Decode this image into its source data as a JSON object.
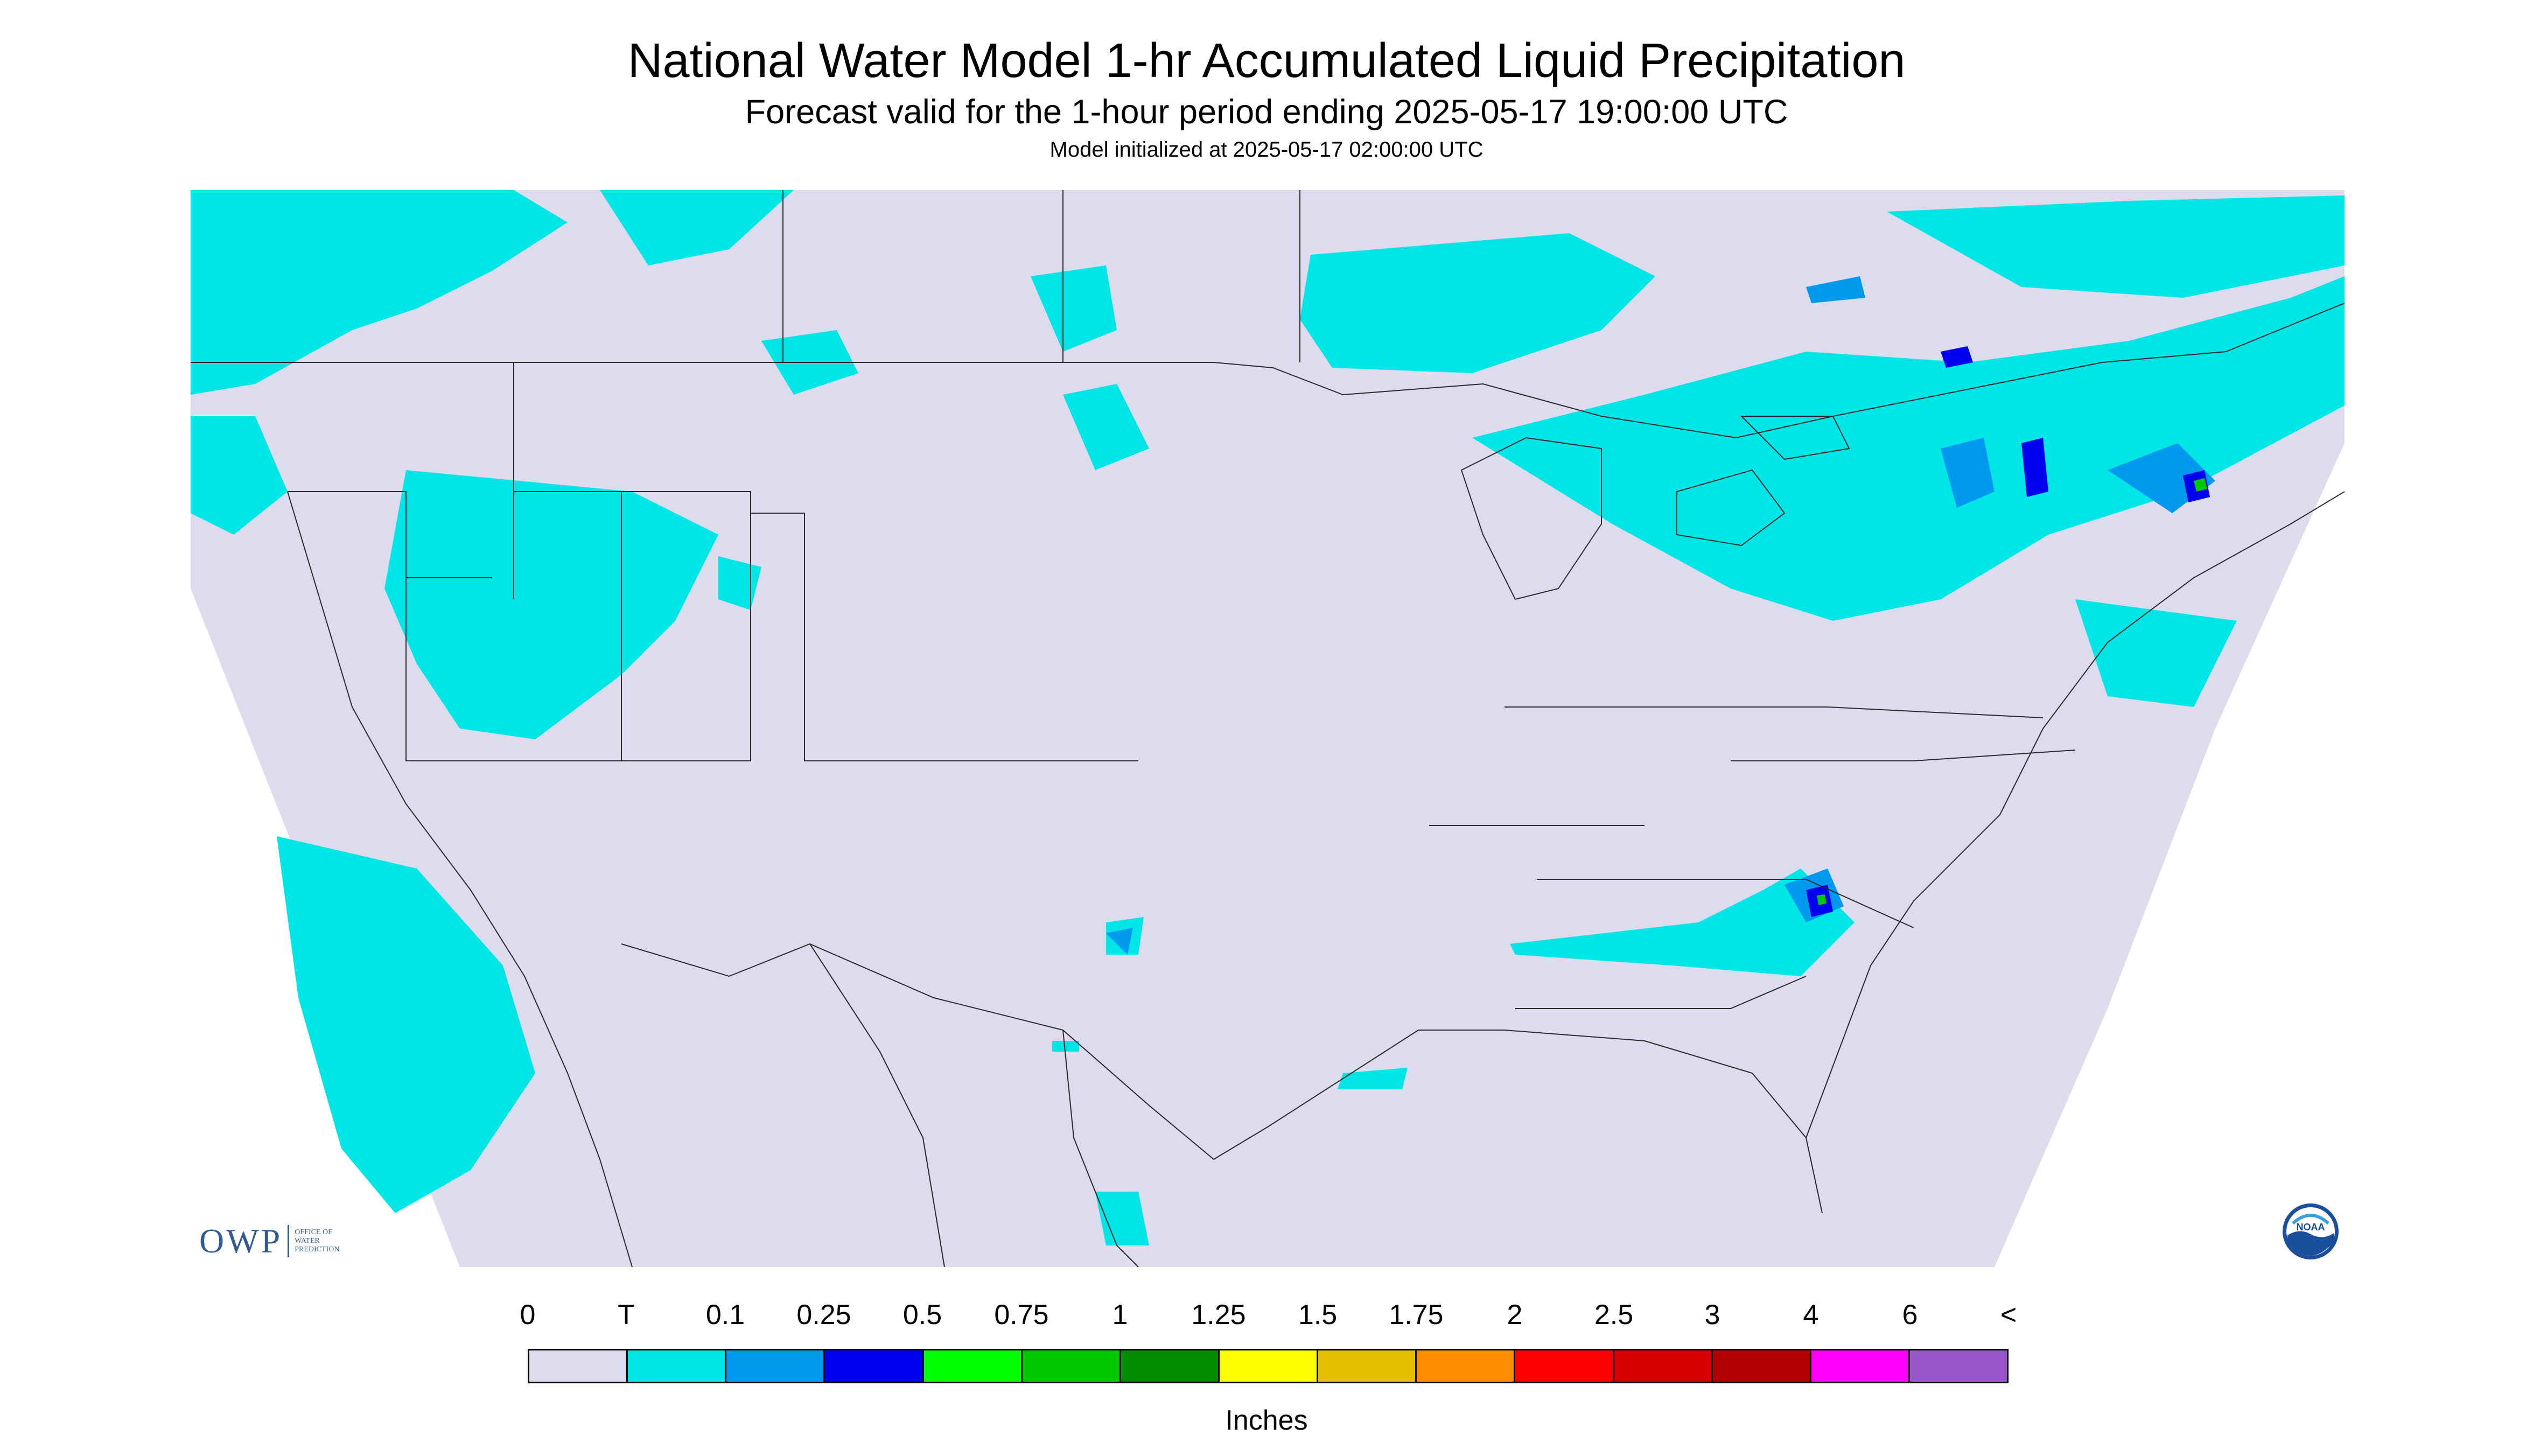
{
  "header": {
    "title": "National Water Model 1-hr Accumulated Liquid Precipitation",
    "subtitle": "Forecast valid for the 1-hour period ending 2025-05-17 19:00:00 UTC",
    "init_line": "Model initialized at 2025-05-17 02:00:00 UTC"
  },
  "legend": {
    "labels": [
      "0",
      "T",
      "0.1",
      "0.25",
      "0.5",
      "0.75",
      "1",
      "1.25",
      "1.5",
      "1.75",
      "2",
      "2.5",
      "3",
      "4",
      "6",
      "<"
    ],
    "colors": [
      "#dcdcee",
      "#00e6e6",
      "#0099f0",
      "#0000f0",
      "#00ff00",
      "#00c800",
      "#008c00",
      "#ffff00",
      "#e6be00",
      "#ff8c00",
      "#ff0000",
      "#d70000",
      "#b40000",
      "#ff00ff",
      "#9955cc"
    ],
    "units": "Inches"
  },
  "map_colors": {
    "background": "#dcdcee",
    "outside": "#ffffff",
    "trace": "#00e6e6",
    "light": "#0099f0",
    "moderate": "#0000f0",
    "heavy": "#00c800",
    "boundary": "#2a2a2a"
  },
  "logos": {
    "owp_mark": "OWP",
    "owp_text": [
      "OFFICE OF",
      "WATER",
      "PREDICTION"
    ],
    "noaa_text": "NOAA"
  }
}
